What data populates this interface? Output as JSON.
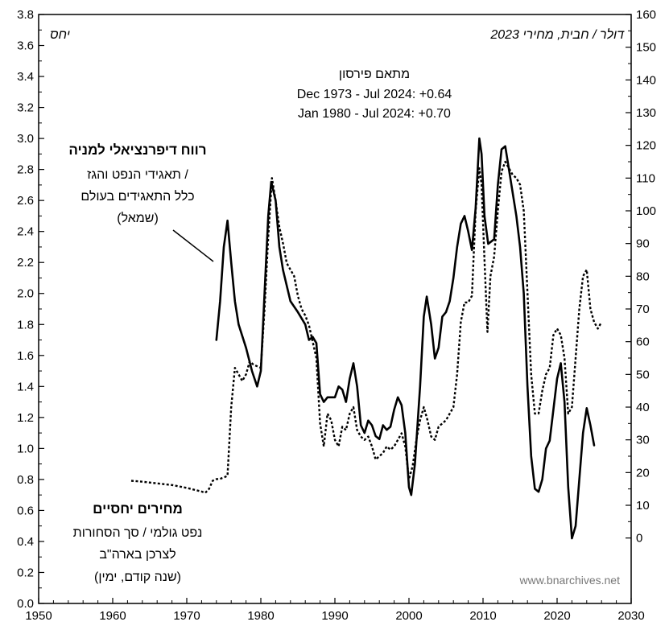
{
  "chart_data": {
    "type": "line",
    "x_range": [
      1950,
      2030
    ],
    "x_ticks": [
      "1950",
      "1960",
      "1970",
      "1980",
      "1990",
      "2000",
      "2010",
      "2020",
      "2030"
    ],
    "y_left_range": [
      0.0,
      3.8
    ],
    "y_left_ticks": [
      "0.0",
      "0.2",
      "0.4",
      "0.6",
      "0.8",
      "1.0",
      "1.2",
      "1.4",
      "1.6",
      "1.8",
      "2.0",
      "2.2",
      "2.4",
      "2.6",
      "2.8",
      "3.0",
      "3.2",
      "3.4",
      "3.6",
      "3.8"
    ],
    "y_right_range": [
      -20,
      160
    ],
    "y_right_ticks": [
      "0",
      "10",
      "20",
      "30",
      "40",
      "50",
      "60",
      "70",
      "80",
      "90",
      "100",
      "110",
      "120",
      "130",
      "140",
      "150",
      "160"
    ],
    "left_axis_label": "יחס",
    "right_axis_label": "דולר / חבית, מחירי 2023",
    "correlation": {
      "title": "מתאם פירסון",
      "line1": "Dec 1973 - Jul 2024: +0.64",
      "line2": "Jan 1980 - Jul 2024: +0.70"
    },
    "solid_label": {
      "bold": "רווח דיפרנציאלי למניה",
      "l1": "תאגידי הנפט והגז /",
      "l2": "כלל התאגידים בעולם",
      "l3": "(שמאל)"
    },
    "dotted_label": {
      "bold": "מחירים יחסיים",
      "l1": "נפט גולמי / סך הסחורות",
      "l2": "לצרכן בארה\"ב",
      "l3": "(שנה קודם, ימין)"
    },
    "watermark": "www.bnarchives.net",
    "series": [
      {
        "axis": "left",
        "style": "solid",
        "points": [
          [
            1974.0,
            1.7
          ],
          [
            1974.5,
            1.95
          ],
          [
            1975.0,
            2.3
          ],
          [
            1975.5,
            2.47
          ],
          [
            1976.0,
            2.2
          ],
          [
            1976.5,
            1.95
          ],
          [
            1977.0,
            1.8
          ],
          [
            1978.0,
            1.65
          ],
          [
            1978.8,
            1.5
          ],
          [
            1979.5,
            1.4
          ],
          [
            1980.0,
            1.5
          ],
          [
            1980.5,
            2.0
          ],
          [
            1981.0,
            2.5
          ],
          [
            1981.4,
            2.72
          ],
          [
            1982.0,
            2.6
          ],
          [
            1982.5,
            2.3
          ],
          [
            1983.0,
            2.15
          ],
          [
            1984.0,
            1.95
          ],
          [
            1985.0,
            1.88
          ],
          [
            1986.0,
            1.8
          ],
          [
            1986.5,
            1.7
          ],
          [
            1987.0,
            1.72
          ],
          [
            1987.5,
            1.68
          ],
          [
            1988.0,
            1.35
          ],
          [
            1988.5,
            1.3
          ],
          [
            1989.0,
            1.33
          ],
          [
            1990.0,
            1.33
          ],
          [
            1990.5,
            1.4
          ],
          [
            1991.0,
            1.38
          ],
          [
            1991.5,
            1.3
          ],
          [
            1992.0,
            1.45
          ],
          [
            1992.5,
            1.55
          ],
          [
            1993.0,
            1.4
          ],
          [
            1993.5,
            1.15
          ],
          [
            1994.0,
            1.1
          ],
          [
            1994.5,
            1.18
          ],
          [
            1995.0,
            1.15
          ],
          [
            1995.5,
            1.08
          ],
          [
            1996.0,
            1.06
          ],
          [
            1996.5,
            1.15
          ],
          [
            1997.0,
            1.12
          ],
          [
            1997.5,
            1.14
          ],
          [
            1998.0,
            1.25
          ],
          [
            1998.5,
            1.33
          ],
          [
            1999.0,
            1.28
          ],
          [
            1999.5,
            1.1
          ],
          [
            2000.0,
            0.75
          ],
          [
            2000.3,
            0.7
          ],
          [
            2000.8,
            0.9
          ],
          [
            2001.5,
            1.4
          ],
          [
            2002.0,
            1.85
          ],
          [
            2002.4,
            1.98
          ],
          [
            2003.0,
            1.8
          ],
          [
            2003.5,
            1.58
          ],
          [
            2004.0,
            1.65
          ],
          [
            2004.5,
            1.85
          ],
          [
            2005.0,
            1.88
          ],
          [
            2005.5,
            1.95
          ],
          [
            2006.0,
            2.1
          ],
          [
            2006.5,
            2.3
          ],
          [
            2007.0,
            2.45
          ],
          [
            2007.5,
            2.5
          ],
          [
            2008.0,
            2.4
          ],
          [
            2008.5,
            2.28
          ],
          [
            2009.0,
            2.55
          ],
          [
            2009.5,
            3.0
          ],
          [
            2009.8,
            2.9
          ],
          [
            2010.2,
            2.5
          ],
          [
            2010.7,
            2.32
          ],
          [
            2011.5,
            2.35
          ],
          [
            2012.0,
            2.7
          ],
          [
            2012.5,
            2.93
          ],
          [
            2013.0,
            2.95
          ],
          [
            2013.5,
            2.8
          ],
          [
            2014.5,
            2.5
          ],
          [
            2015.0,
            2.3
          ],
          [
            2015.5,
            2.0
          ],
          [
            2016.0,
            1.4
          ],
          [
            2016.5,
            0.95
          ],
          [
            2017.0,
            0.74
          ],
          [
            2017.5,
            0.72
          ],
          [
            2018.0,
            0.8
          ],
          [
            2018.5,
            1.0
          ],
          [
            2019.0,
            1.05
          ],
          [
            2019.5,
            1.25
          ],
          [
            2020.0,
            1.45
          ],
          [
            2020.5,
            1.55
          ],
          [
            2021.0,
            1.3
          ],
          [
            2021.5,
            0.75
          ],
          [
            2022.0,
            0.42
          ],
          [
            2022.5,
            0.5
          ],
          [
            2023.0,
            0.8
          ],
          [
            2023.5,
            1.1
          ],
          [
            2024.0,
            1.26
          ],
          [
            2024.5,
            1.15
          ],
          [
            2025.0,
            1.02
          ]
        ]
      },
      {
        "axis": "right",
        "style": "dotted",
        "points": [
          [
            1962.5,
            17.5
          ],
          [
            1964.0,
            17.2
          ],
          [
            1966.0,
            16.7
          ],
          [
            1968.0,
            16.2
          ],
          [
            1970.0,
            15.3
          ],
          [
            1972.0,
            14.2
          ],
          [
            1972.5,
            13.8
          ],
          [
            1973.0,
            15.0
          ],
          [
            1973.5,
            17.5
          ],
          [
            1974.0,
            18.0
          ],
          [
            1974.5,
            18.1
          ],
          [
            1975.0,
            18.5
          ],
          [
            1975.5,
            19.0
          ],
          [
            1976.0,
            40.0
          ],
          [
            1976.5,
            52.0
          ],
          [
            1977.0,
            50.0
          ],
          [
            1977.5,
            48.0
          ],
          [
            1978.0,
            50.0
          ],
          [
            1978.5,
            54.0
          ],
          [
            1979.0,
            53.0
          ],
          [
            1979.5,
            52.5
          ],
          [
            1980.0,
            52.0
          ],
          [
            1980.5,
            70.0
          ],
          [
            1981.0,
            92.0
          ],
          [
            1981.5,
            110.0
          ],
          [
            1982.0,
            103.0
          ],
          [
            1982.5,
            95.0
          ],
          [
            1983.0,
            90.0
          ],
          [
            1983.5,
            84.0
          ],
          [
            1984.0,
            82.0
          ],
          [
            1984.5,
            80.0
          ],
          [
            1985.0,
            74.0
          ],
          [
            1985.5,
            70.0
          ],
          [
            1986.0,
            68.0
          ],
          [
            1986.5,
            65.0
          ],
          [
            1987.0,
            60.0
          ],
          [
            1987.5,
            55.0
          ],
          [
            1988.0,
            35.0
          ],
          [
            1988.5,
            28.0
          ],
          [
            1989.0,
            38.0
          ],
          [
            1989.5,
            36.0
          ],
          [
            1990.0,
            30.0
          ],
          [
            1990.5,
            28.0
          ],
          [
            1991.0,
            34.0
          ],
          [
            1991.5,
            33.0
          ],
          [
            1992.0,
            38.0
          ],
          [
            1992.5,
            40.0
          ],
          [
            1993.0,
            33.0
          ],
          [
            1993.5,
            31.0
          ],
          [
            1994.0,
            30.0
          ],
          [
            1994.5,
            31.0
          ],
          [
            1995.0,
            28.0
          ],
          [
            1995.5,
            24.0
          ],
          [
            1996.0,
            25.0
          ],
          [
            1996.5,
            26.0
          ],
          [
            1997.0,
            28.0
          ],
          [
            1997.5,
            27.0
          ],
          [
            1998.0,
            28.0
          ],
          [
            1998.5,
            30.0
          ],
          [
            1999.0,
            32.0
          ],
          [
            1999.5,
            28.0
          ],
          [
            2000.0,
            18.0
          ],
          [
            2000.5,
            22.0
          ],
          [
            2001.0,
            30.0
          ],
          [
            2001.5,
            36.0
          ],
          [
            2002.0,
            40.0
          ],
          [
            2002.5,
            36.0
          ],
          [
            2003.0,
            31.0
          ],
          [
            2003.5,
            30.0
          ],
          [
            2004.0,
            34.0
          ],
          [
            2004.5,
            35.0
          ],
          [
            2005.0,
            36.0
          ],
          [
            2005.5,
            38.0
          ],
          [
            2006.0,
            40.0
          ],
          [
            2006.5,
            50.0
          ],
          [
            2007.0,
            66.0
          ],
          [
            2007.5,
            72.0
          ],
          [
            2008.0,
            72.0
          ],
          [
            2008.5,
            74.0
          ],
          [
            2009.0,
            100.0
          ],
          [
            2009.5,
            113.0
          ],
          [
            2009.8,
            108.0
          ],
          [
            2010.2,
            85.0
          ],
          [
            2010.6,
            63.0
          ],
          [
            2011.0,
            80.0
          ],
          [
            2011.5,
            86.0
          ],
          [
            2012.0,
            100.0
          ],
          [
            2012.5,
            112.0
          ],
          [
            2013.0,
            115.0
          ],
          [
            2013.5,
            113.0
          ],
          [
            2014.0,
            111.0
          ],
          [
            2014.5,
            110.0
          ],
          [
            2015.0,
            108.0
          ],
          [
            2015.5,
            100.0
          ],
          [
            2016.0,
            75.0
          ],
          [
            2016.5,
            50.0
          ],
          [
            2017.0,
            38.0
          ],
          [
            2017.5,
            38.0
          ],
          [
            2018.0,
            45.0
          ],
          [
            2018.5,
            50.0
          ],
          [
            2019.0,
            52.0
          ],
          [
            2019.5,
            62.0
          ],
          [
            2020.0,
            64.0
          ],
          [
            2020.5,
            62.0
          ],
          [
            2021.0,
            55.0
          ],
          [
            2021.5,
            38.0
          ],
          [
            2022.0,
            40.0
          ],
          [
            2022.5,
            55.0
          ],
          [
            2023.0,
            70.0
          ],
          [
            2023.5,
            80.0
          ],
          [
            2024.0,
            82.0
          ],
          [
            2024.5,
            70.0
          ],
          [
            2025.0,
            66.0
          ],
          [
            2025.5,
            64.0
          ],
          [
            2026.0,
            66.0
          ]
        ]
      }
    ]
  }
}
